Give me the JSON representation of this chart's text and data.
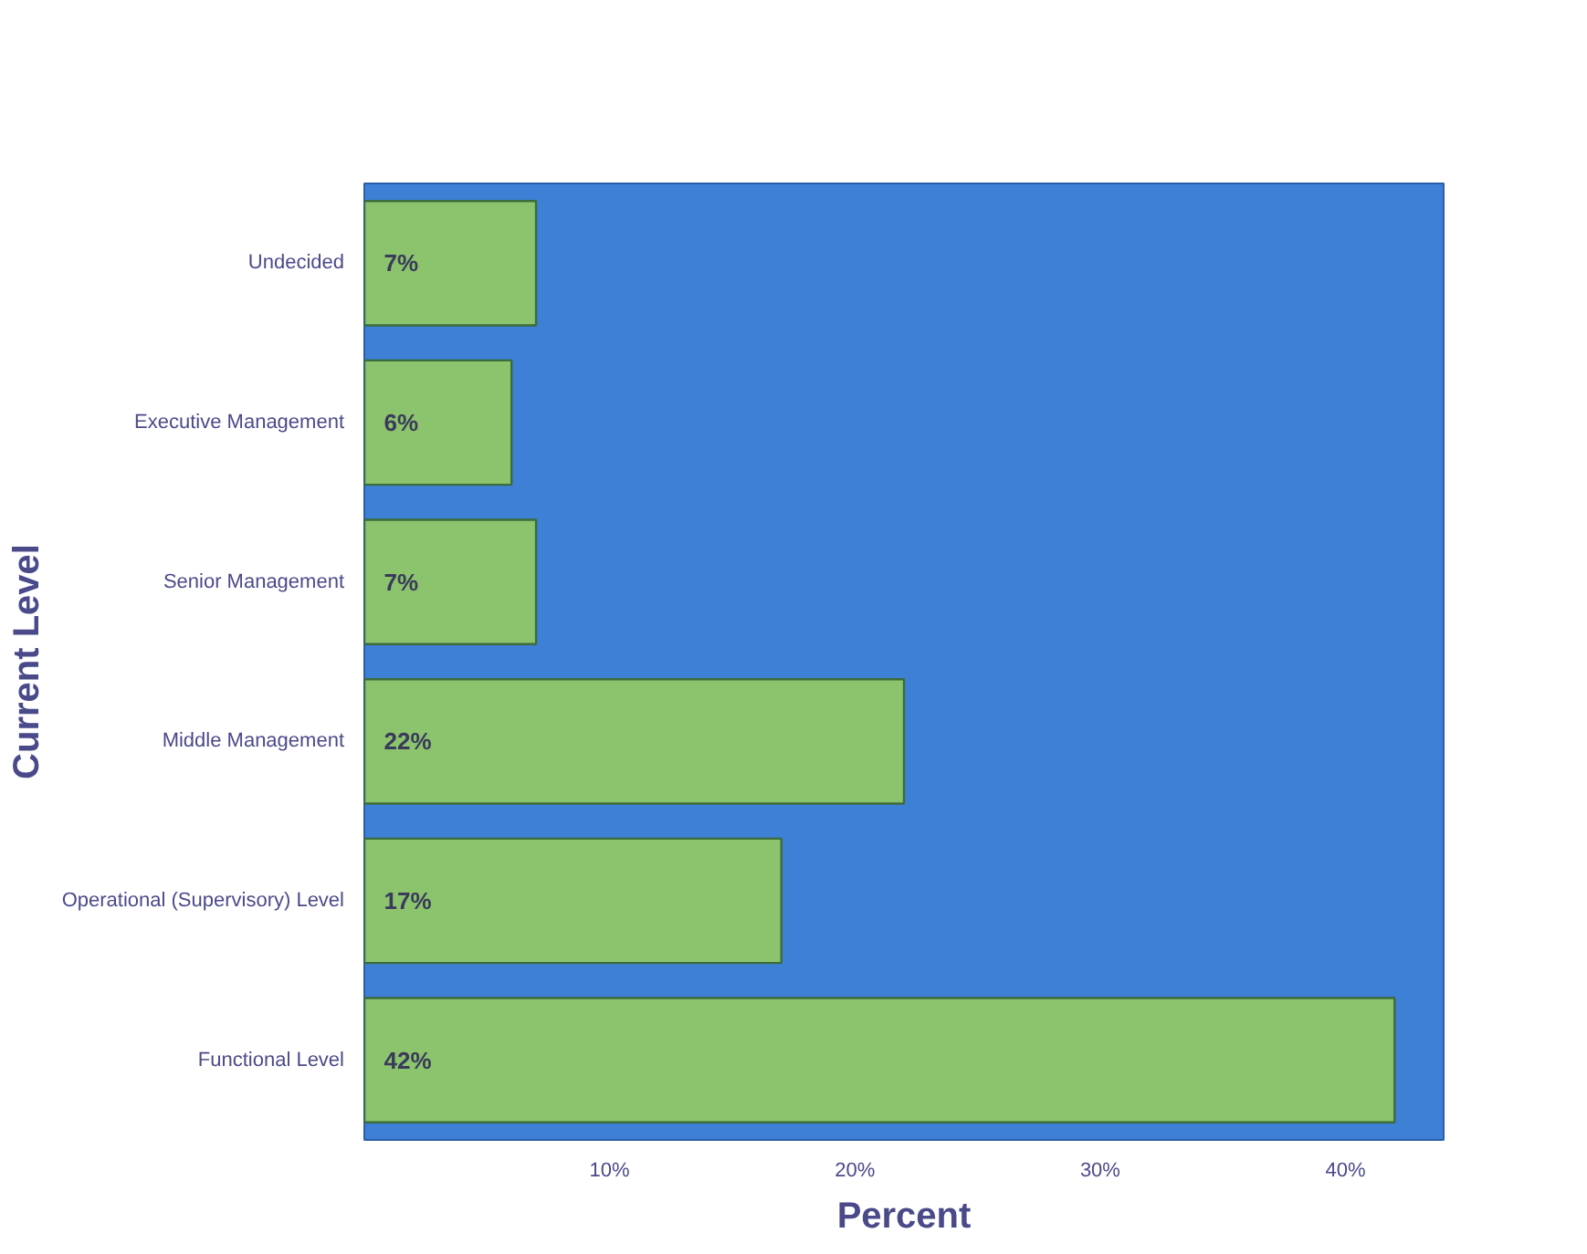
{
  "chart_data": {
    "type": "bar",
    "orientation": "horizontal",
    "xlabel": "Percent",
    "ylabel": "Current Level",
    "categories": [
      "Undecided",
      "Executive Management",
      "Senior Management",
      "Middle Management",
      "Operational (Supervisory) Level",
      "Functional Level"
    ],
    "values": [
      7,
      6,
      7,
      22,
      17,
      42
    ],
    "value_labels": [
      "7%",
      "6%",
      "7%",
      "22%",
      "17%",
      "42%"
    ],
    "color": "#8cc46e",
    "xlim": [
      0,
      44
    ],
    "xticks": [
      {
        "value": 10,
        "label": "10%"
      },
      {
        "value": 20,
        "label": "20%"
      },
      {
        "value": 30,
        "label": "30%"
      },
      {
        "value": 40,
        "label": "40%"
      }
    ],
    "grid": false
  }
}
